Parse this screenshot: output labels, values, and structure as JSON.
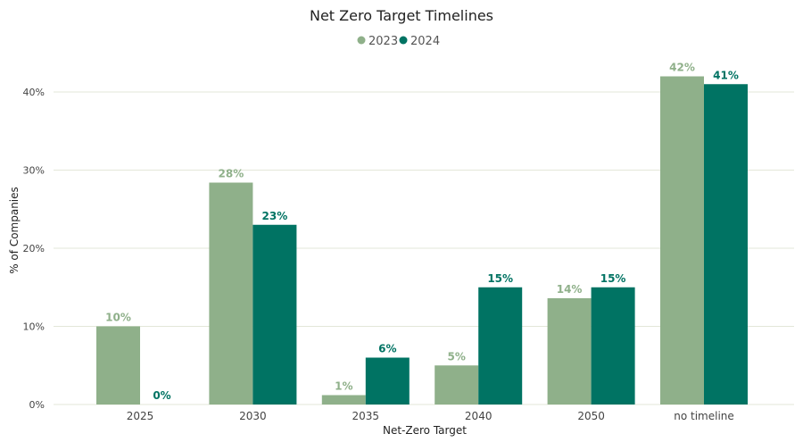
{
  "chart_data": {
    "type": "bar",
    "title": "Net Zero Target Timelines",
    "xlabel": "Net-Zero Target",
    "ylabel": "% of Companies",
    "categories": [
      "2025",
      "2030",
      "2035",
      "2040",
      "2050",
      "no timeline"
    ],
    "series": [
      {
        "name": "2023",
        "color": "#8fb08a",
        "values": [
          10,
          28.4,
          1.2,
          5,
          13.6,
          42
        ],
        "labels": [
          "10%",
          "28%",
          "1%",
          "5%",
          "14%",
          "42%"
        ]
      },
      {
        "name": "2024",
        "color": "#007363",
        "values": [
          0,
          23,
          6,
          15,
          15,
          41
        ],
        "labels": [
          "0%",
          "23%",
          "6%",
          "15%",
          "15%",
          "41%"
        ]
      }
    ],
    "ylim": [
      0,
      40
    ],
    "yticks": [
      0,
      10,
      20,
      30,
      40
    ],
    "ytick_labels": [
      "0%",
      "10%",
      "20%",
      "30%",
      "40%"
    ],
    "grid": true,
    "legend_position": "top-center"
  }
}
